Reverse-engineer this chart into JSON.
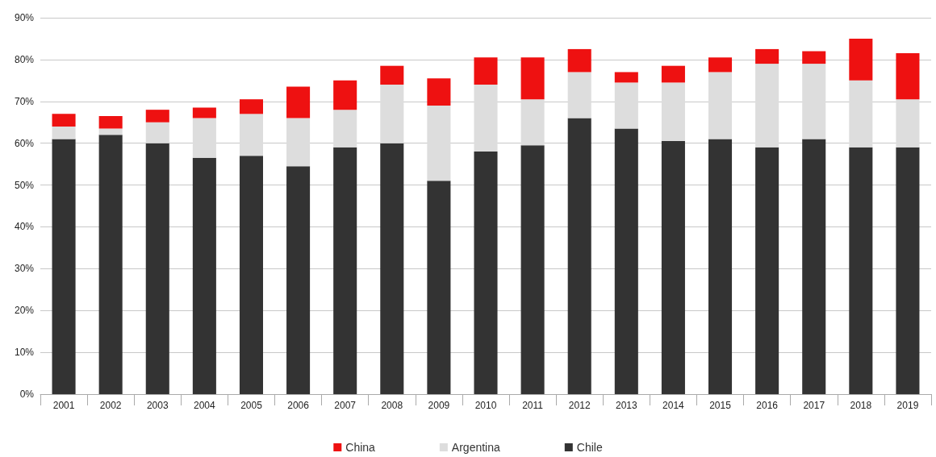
{
  "chart_data": {
    "type": "bar",
    "stacked": true,
    "categories": [
      "2001",
      "2002",
      "2003",
      "2004",
      "2005",
      "2006",
      "2007",
      "2008",
      "2009",
      "2010",
      "2011",
      "2012",
      "2013",
      "2014",
      "2015",
      "2016",
      "2017",
      "2018",
      "2019"
    ],
    "series": [
      {
        "name": "Chile",
        "color": "#333333",
        "values": [
          61,
          62,
          60,
          56.5,
          57,
          54.5,
          59,
          60,
          51,
          58,
          59.5,
          66,
          63.5,
          60.5,
          61,
          59,
          61,
          59,
          59
        ]
      },
      {
        "name": "Argentina",
        "color": "#dddddd",
        "values": [
          3,
          1.5,
          5,
          9.5,
          10,
          11.5,
          9,
          14,
          18,
          16,
          11,
          11,
          11,
          14,
          16,
          20,
          18,
          16,
          11.5
        ]
      },
      {
        "name": "China",
        "color": "#ee1111",
        "values": [
          3,
          3,
          3,
          2.5,
          3.5,
          7.5,
          7,
          4.5,
          6.5,
          6.5,
          10,
          5.5,
          2.5,
          4,
          3.5,
          3.5,
          3,
          10,
          11
        ]
      }
    ],
    "ylim": [
      0,
      90
    ],
    "yticks": [
      {
        "value": 0,
        "label": "0%"
      },
      {
        "value": 10,
        "label": "10%"
      },
      {
        "value": 20,
        "label": "20%"
      },
      {
        "value": 30,
        "label": "30%"
      },
      {
        "value": 40,
        "label": "40%"
      },
      {
        "value": 50,
        "label": "50%"
      },
      {
        "value": 60,
        "label": "60%"
      },
      {
        "value": 70,
        "label": "70%"
      },
      {
        "value": 80,
        "label": "80%"
      },
      {
        "value": 90,
        "label": "90%"
      }
    ],
    "grid": "y",
    "legend": "bottom"
  }
}
